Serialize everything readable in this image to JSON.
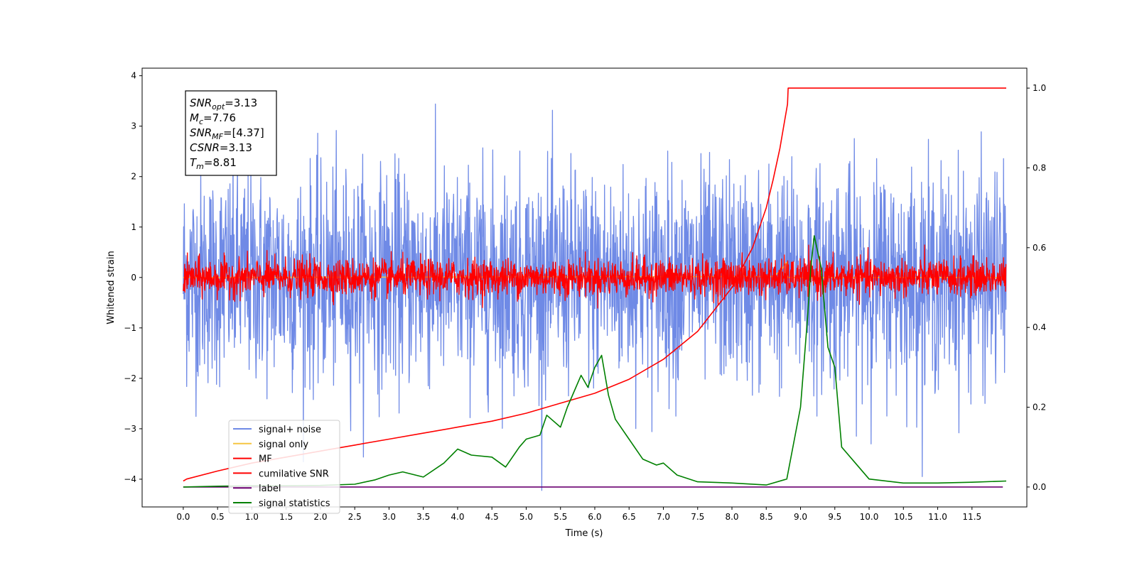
{
  "chart_data": {
    "type": "line",
    "xlabel": "Time (s)",
    "ylabel": "Whitened strain",
    "xlim": [
      -0.6,
      12.3
    ],
    "ylim": [
      -4.55,
      4.15
    ],
    "y2lim": [
      -0.05,
      1.05
    ],
    "x_ticks": [
      "0.0",
      "0.5",
      "1.0",
      "1.5",
      "2.0",
      "2.5",
      "3.0",
      "3.5",
      "4.0",
      "4.5",
      "5.0",
      "5.5",
      "6.0",
      "6.5",
      "7.0",
      "7.5",
      "8.0",
      "8.5",
      "9.0",
      "9.5",
      "10.0",
      "10.5",
      "11.0",
      "11.5"
    ],
    "y_ticks": [
      "4",
      "3",
      "2",
      "1",
      "0",
      "−1",
      "−2",
      "−3",
      "−4"
    ],
    "y2_ticks": [
      "1.0",
      "0.8",
      "0.6",
      "0.4",
      "0.2",
      "0.0"
    ],
    "legend_loc": "lower-left",
    "annotation": [
      {
        "main": "SNR",
        "sub": "opt",
        "rest": "=3.13"
      },
      {
        "main": "M",
        "sub": "c",
        "rest": "=7.76"
      },
      {
        "main": "SNR",
        "sub": "MF",
        "rest": "=[4.37]"
      },
      {
        "main": "CSNR",
        "sub": "",
        "rest": "=3.13"
      },
      {
        "main": "T",
        "sub": "m",
        "rest": "=8.81"
      }
    ],
    "series": [
      {
        "name": "signal+ noise",
        "color": "#6f8ae6",
        "axis": "left",
        "kind": "noise",
        "x_range": [
          0,
          12
        ],
        "mean": 0,
        "std": 1.05,
        "n_points": 2400
      },
      {
        "name": "signal only",
        "color": "#f5c542",
        "axis": "left",
        "kind": "line",
        "x": [
          0,
          8.6,
          8.7,
          8.8,
          8.81,
          9.0,
          12
        ],
        "y": [
          0,
          0.02,
          0.12,
          0.3,
          0,
          0,
          0
        ]
      },
      {
        "name": "MF",
        "color": "#ff0000",
        "axis": "left",
        "kind": "noise",
        "x_range": [
          0,
          12
        ],
        "mean": 0,
        "std": 0.18,
        "n_points": 2400
      },
      {
        "name": "cumilative SNR",
        "color": "#ff0000",
        "axis": "right",
        "kind": "line",
        "x": [
          0,
          0.05,
          0.5,
          1,
          1.5,
          2,
          2.5,
          3,
          3.5,
          4,
          4.5,
          5,
          5.5,
          6,
          6.5,
          7,
          7.5,
          8,
          8.3,
          8.5,
          8.6,
          8.7,
          8.75,
          8.81,
          8.82,
          12
        ],
        "y": [
          0.015,
          0.02,
          0.04,
          0.06,
          0.075,
          0.09,
          0.105,
          0.12,
          0.135,
          0.15,
          0.165,
          0.185,
          0.21,
          0.235,
          0.27,
          0.32,
          0.39,
          0.5,
          0.6,
          0.7,
          0.77,
          0.85,
          0.9,
          0.96,
          1.0,
          1.0
        ]
      },
      {
        "name": "label",
        "color": "#6a0070",
        "axis": "right",
        "kind": "line",
        "x": [
          0,
          11.95
        ],
        "y": [
          0,
          0
        ]
      },
      {
        "name": "signal statistics",
        "color": "#008000",
        "axis": "right",
        "kind": "line",
        "x": [
          0,
          0.5,
          1,
          1.5,
          2,
          2.5,
          2.8,
          3.0,
          3.2,
          3.5,
          3.8,
          4.0,
          4.2,
          4.5,
          4.7,
          4.9,
          5.0,
          5.2,
          5.3,
          5.5,
          5.6,
          5.8,
          5.9,
          6.0,
          6.1,
          6.2,
          6.3,
          6.5,
          6.7,
          6.9,
          7.0,
          7.2,
          7.5,
          8.0,
          8.5,
          8.8,
          9.0,
          9.1,
          9.15,
          9.2,
          9.3,
          9.4,
          9.5,
          9.6,
          9.8,
          10.0,
          10.5,
          11.0,
          11.5,
          12.0
        ],
        "y": [
          0.0,
          0.002,
          0.003,
          0.003,
          0.004,
          0.007,
          0.018,
          0.03,
          0.038,
          0.025,
          0.06,
          0.095,
          0.08,
          0.075,
          0.05,
          0.1,
          0.12,
          0.13,
          0.18,
          0.15,
          0.2,
          0.28,
          0.25,
          0.3,
          0.33,
          0.23,
          0.17,
          0.12,
          0.07,
          0.055,
          0.06,
          0.03,
          0.013,
          0.01,
          0.005,
          0.02,
          0.2,
          0.42,
          0.55,
          0.63,
          0.55,
          0.35,
          0.3,
          0.1,
          0.06,
          0.02,
          0.01,
          0.01,
          0.012,
          0.015
        ]
      }
    ]
  }
}
